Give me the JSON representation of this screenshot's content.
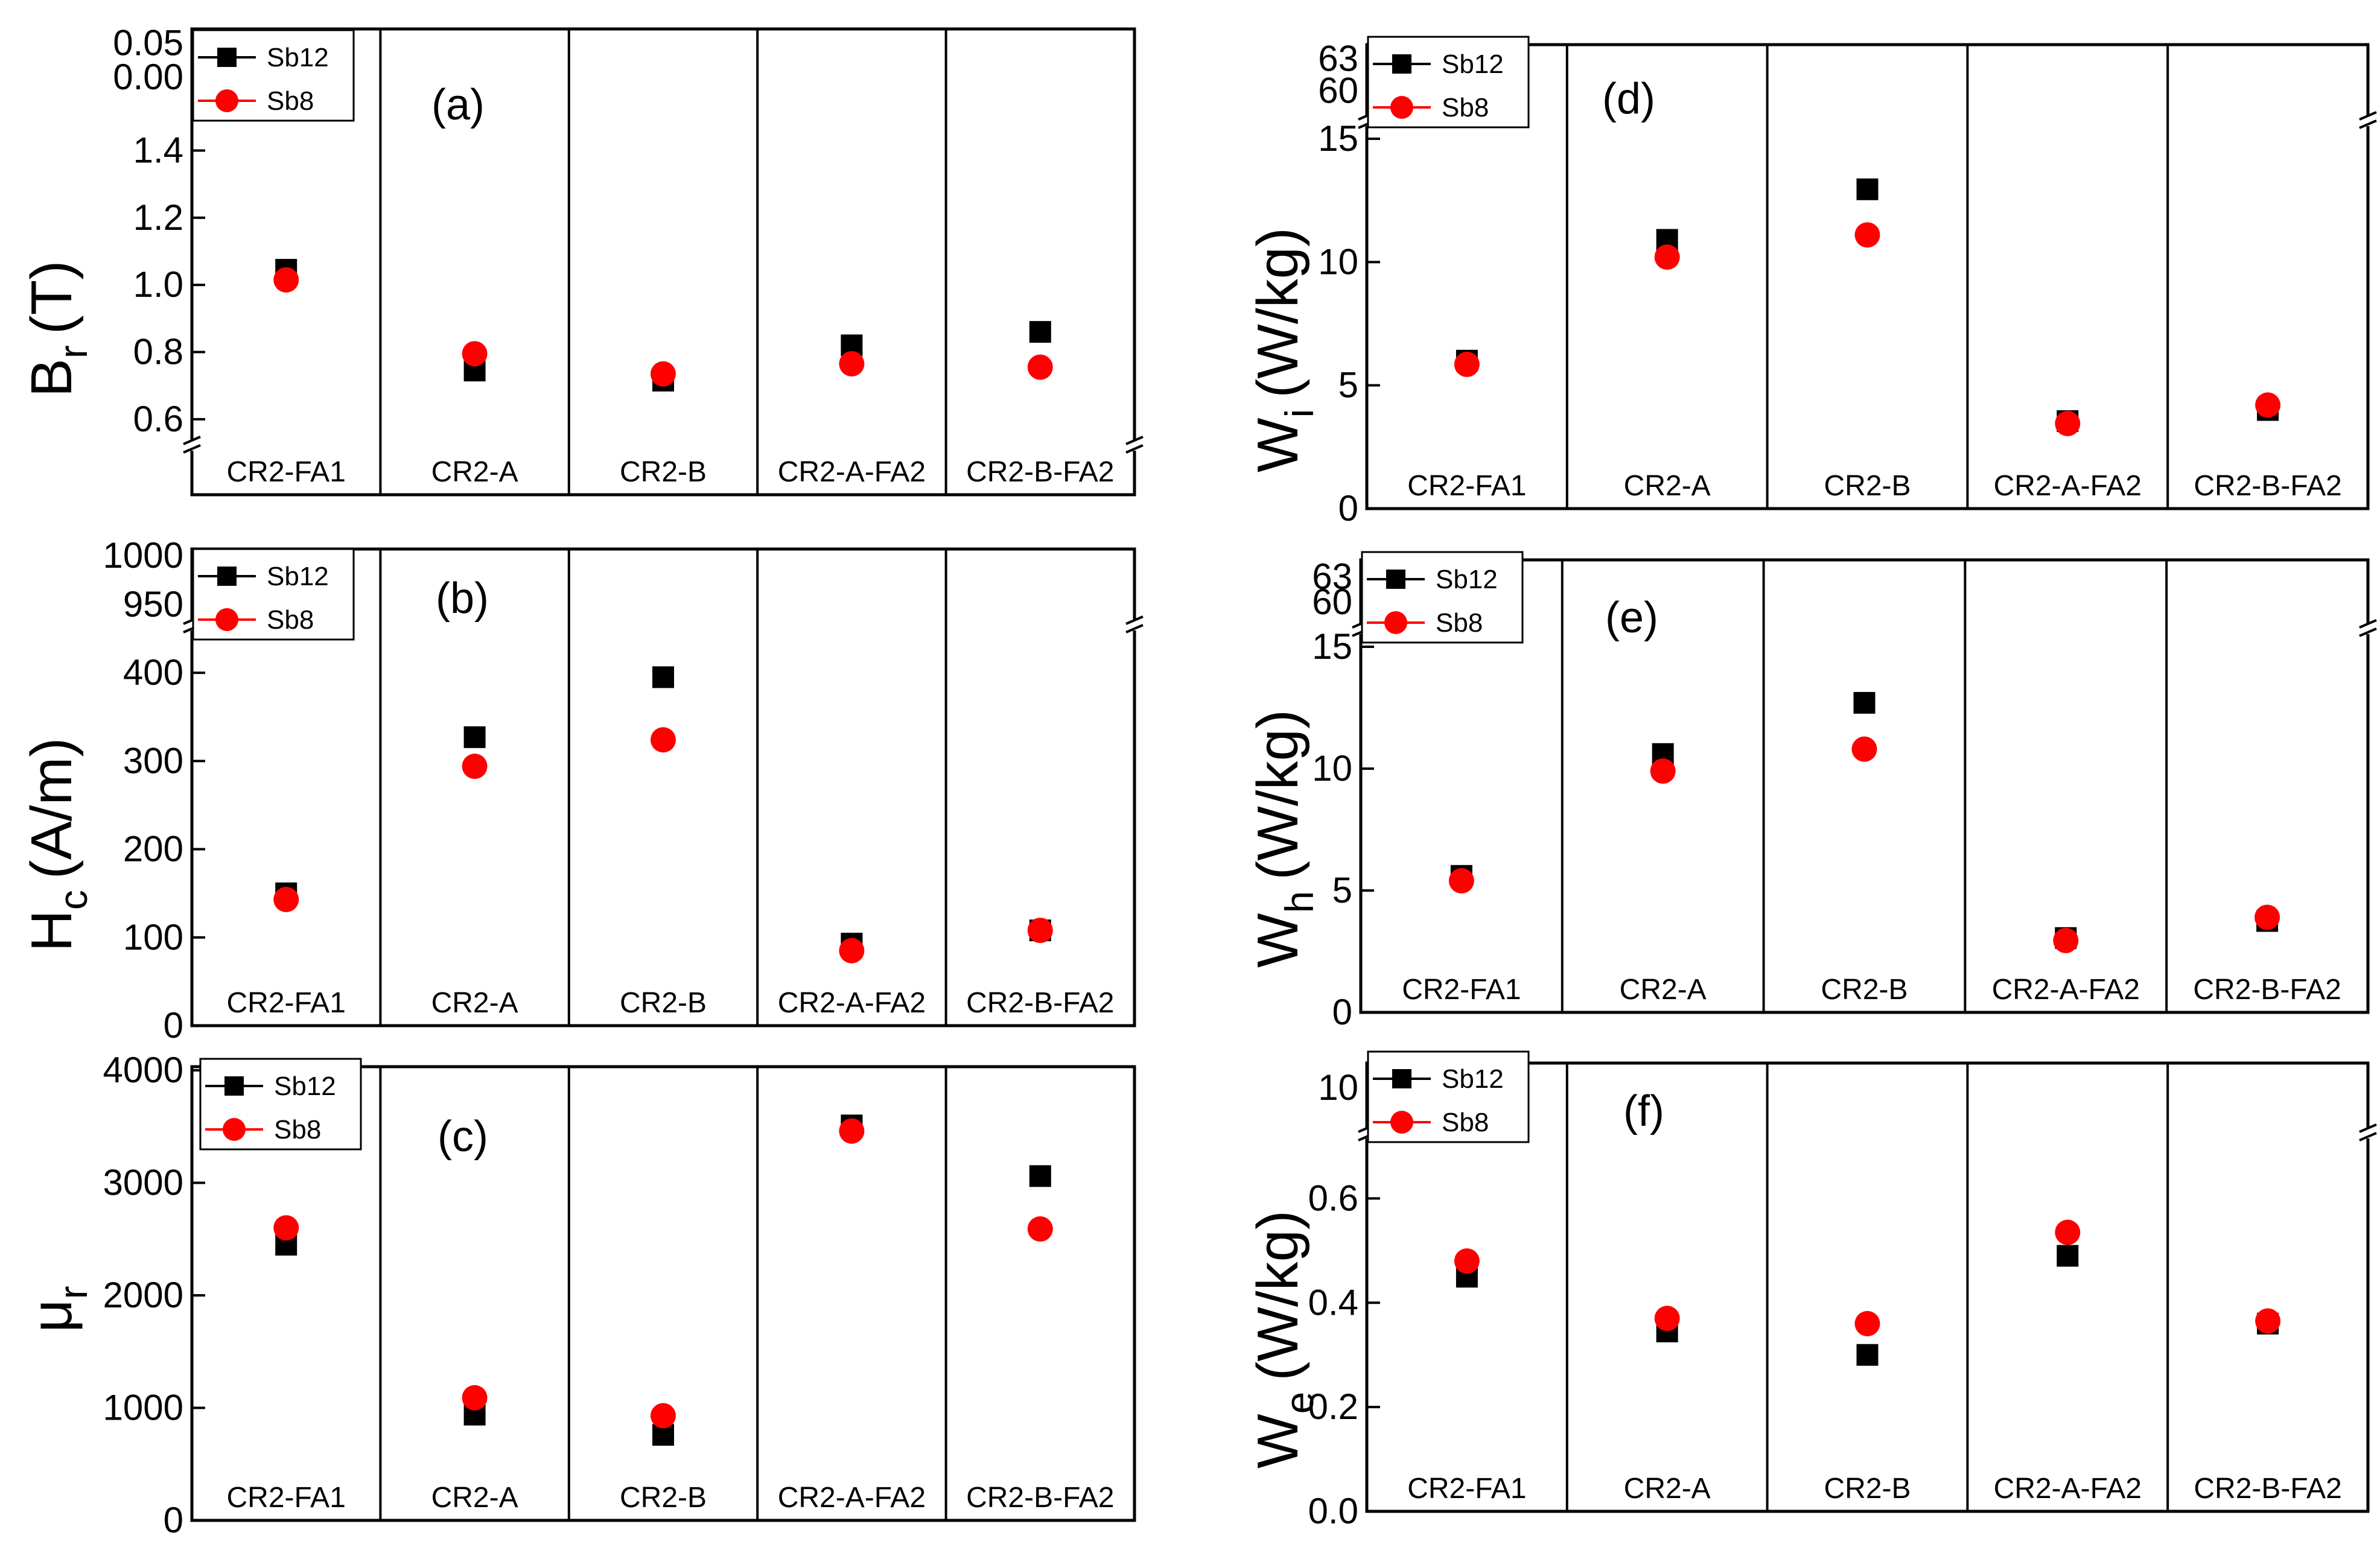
{
  "chart_data": [
    {
      "type": "scatter",
      "panel_label": "(a)",
      "categories": [
        "CR2-FA1",
        "CR2-A",
        "CR2-B",
        "CR2-A-FA2",
        "CR2-B-FA2"
      ],
      "ylabel": "B",
      "ylabel_sub": "r",
      "ylabel_suffix": "(T)",
      "ylim_main": [
        0.58,
        1.48
      ],
      "ylim_break": [
        0.0,
        0.06
      ],
      "yticks_main": [
        "0.6",
        "0.8",
        "1.0",
        "1.2",
        "1.4"
      ],
      "yticks_break": [
        "0.00",
        "0.05"
      ],
      "series": [
        {
          "name": "Sb12",
          "marker": "square",
          "color": "#000000",
          "values": [
            1.045,
            0.745,
            0.715,
            0.82,
            0.86
          ]
        },
        {
          "name": "Sb8",
          "marker": "circle",
          "color": "#ff0000",
          "values": [
            1.015,
            0.795,
            0.735,
            0.765,
            0.755
          ]
        }
      ]
    },
    {
      "type": "scatter",
      "panel_label": "(b)",
      "categories": [
        "CR2-FA1",
        "CR2-A",
        "CR2-B",
        "CR2-A-FA2",
        "CR2-B-FA2"
      ],
      "ylabel": "H",
      "ylabel_sub": "c",
      "ylabel_suffix": "(A/m)",
      "ylim_main": [
        0,
        450
      ],
      "ylim_break": [
        940,
        1010
      ],
      "yticks_main": [
        "0",
        "100",
        "200",
        "300",
        "400"
      ],
      "yticks_break": [
        "950",
        "1000"
      ],
      "series": [
        {
          "name": "Sb12",
          "marker": "square",
          "color": "#000000",
          "values": [
            150,
            327,
            395,
            93,
            108
          ]
        },
        {
          "name": "Sb8",
          "marker": "circle",
          "color": "#ff0000",
          "values": [
            143,
            294,
            324,
            85,
            108
          ]
        }
      ]
    },
    {
      "type": "scatter",
      "panel_label": "(c)",
      "categories": [
        "CR2-FA1",
        "CR2-A",
        "CR2-B",
        "CR2-A-FA2",
        "CR2-B-FA2"
      ],
      "ylabel": "μ",
      "ylabel_sub": "r",
      "ylabel_suffix": "",
      "ylim_main": [
        0,
        4000
      ],
      "yticks_main": [
        "0",
        "1000",
        "2000",
        "3000",
        "4000"
      ],
      "series": [
        {
          "name": "Sb12",
          "marker": "square",
          "color": "#000000",
          "values": [
            2450,
            940,
            760,
            3510,
            3060
          ]
        },
        {
          "name": "Sb8",
          "marker": "circle",
          "color": "#ff0000",
          "values": [
            2600,
            1090,
            930,
            3460,
            2590
          ]
        }
      ]
    },
    {
      "type": "scatter",
      "panel_label": "(d)",
      "categories": [
        "CR2-FA1",
        "CR2-A",
        "CR2-B",
        "CR2-A-FA2",
        "CR2-B-FA2"
      ],
      "ylabel": "W",
      "ylabel_sub": "i",
      "ylabel_suffix": "(W/kg)",
      "ylim_main": [
        0,
        15
      ],
      "ylim_break": [
        59,
        64
      ],
      "yticks_main": [
        "0",
        "5",
        "10",
        "15"
      ],
      "yticks_break": [
        "60",
        "63"
      ],
      "series": [
        {
          "name": "Sb12",
          "marker": "square",
          "color": "#000000",
          "values": [
            6.0,
            10.9,
            12.95,
            3.55,
            4.0
          ]
        },
        {
          "name": "Sb8",
          "marker": "circle",
          "color": "#ff0000",
          "values": [
            5.85,
            10.2,
            11.1,
            3.45,
            4.2
          ]
        }
      ]
    },
    {
      "type": "scatter",
      "panel_label": "(e)",
      "categories": [
        "CR2-FA1",
        "CR2-A",
        "CR2-B",
        "CR2-A-FA2",
        "CR2-B-FA2"
      ],
      "ylabel": "W",
      "ylabel_sub": "h",
      "ylabel_suffix": "(W/kg)",
      "ylim_main": [
        0,
        15
      ],
      "ylim_break": [
        59,
        64
      ],
      "yticks_main": [
        "0",
        "5",
        "10",
        "15"
      ],
      "yticks_break": [
        "60",
        "63"
      ],
      "series": [
        {
          "name": "Sb12",
          "marker": "square",
          "color": "#000000",
          "values": [
            5.6,
            10.6,
            12.7,
            3.05,
            3.75
          ]
        },
        {
          "name": "Sb8",
          "marker": "circle",
          "color": "#ff0000",
          "values": [
            5.4,
            9.9,
            10.8,
            2.95,
            3.9
          ]
        }
      ]
    },
    {
      "type": "scatter",
      "panel_label": "(f)",
      "categories": [
        "CR2-FA1",
        "CR2-A",
        "CR2-B",
        "CR2-A-FA2",
        "CR2-B-FA2"
      ],
      "ylabel": "W",
      "ylabel_sub": "e",
      "ylabel_suffix": "(W/kg)",
      "ylim_main": [
        0,
        0.7
      ],
      "ylim_break": [
        8.5,
        11
      ],
      "yticks_main": [
        "0.0",
        "0.2",
        "0.4",
        "0.6"
      ],
      "yticks_break": [
        "10"
      ],
      "series": [
        {
          "name": "Sb12",
          "marker": "square",
          "color": "#000000",
          "values": [
            0.45,
            0.345,
            0.3,
            0.49,
            0.36
          ]
        },
        {
          "name": "Sb8",
          "marker": "circle",
          "color": "#ff0000",
          "values": [
            0.48,
            0.37,
            0.36,
            0.535,
            0.365
          ]
        }
      ]
    }
  ]
}
